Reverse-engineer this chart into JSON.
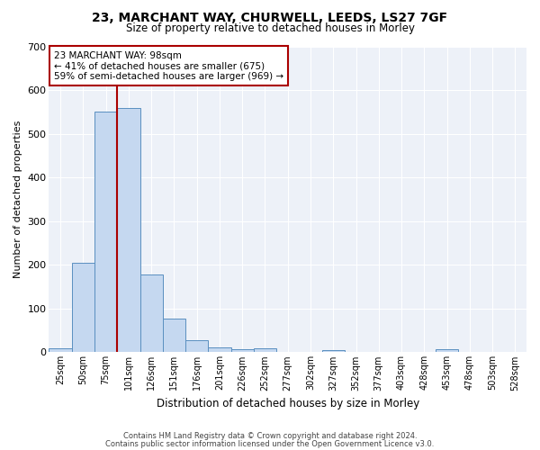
{
  "title1": "23, MARCHANT WAY, CHURWELL, LEEDS, LS27 7GF",
  "title2": "Size of property relative to detached houses in Morley",
  "xlabel": "Distribution of detached houses by size in Morley",
  "ylabel": "Number of detached properties",
  "annotation_title": "23 MARCHANT WAY: 98sqm",
  "annotation_line2": "← 41% of detached houses are smaller (675)",
  "annotation_line3": "59% of semi-detached houses are larger (969) →",
  "footer1": "Contains HM Land Registry data © Crown copyright and database right 2024.",
  "footer2": "Contains public sector information licensed under the Open Government Licence v3.0.",
  "bar_color": "#c5d8f0",
  "bar_edge_color": "#5a8fc0",
  "marker_line_color": "#aa0000",
  "annotation_box_color": "#ffffff",
  "annotation_box_edge": "#aa0000",
  "background_color": "#edf1f8",
  "categories": [
    "25sqm",
    "50sqm",
    "75sqm",
    "101sqm",
    "126sqm",
    "151sqm",
    "176sqm",
    "201sqm",
    "226sqm",
    "252sqm",
    "277sqm",
    "302sqm",
    "327sqm",
    "352sqm",
    "377sqm",
    "403sqm",
    "428sqm",
    "453sqm",
    "478sqm",
    "503sqm",
    "528sqm"
  ],
  "values": [
    10,
    205,
    550,
    558,
    178,
    78,
    27,
    12,
    7,
    10,
    0,
    0,
    5,
    0,
    0,
    0,
    0,
    8,
    0,
    0,
    0
  ],
  "marker_bin_index": 3,
  "ylim": [
    0,
    700
  ],
  "yticks": [
    0,
    100,
    200,
    300,
    400,
    500,
    600,
    700
  ]
}
